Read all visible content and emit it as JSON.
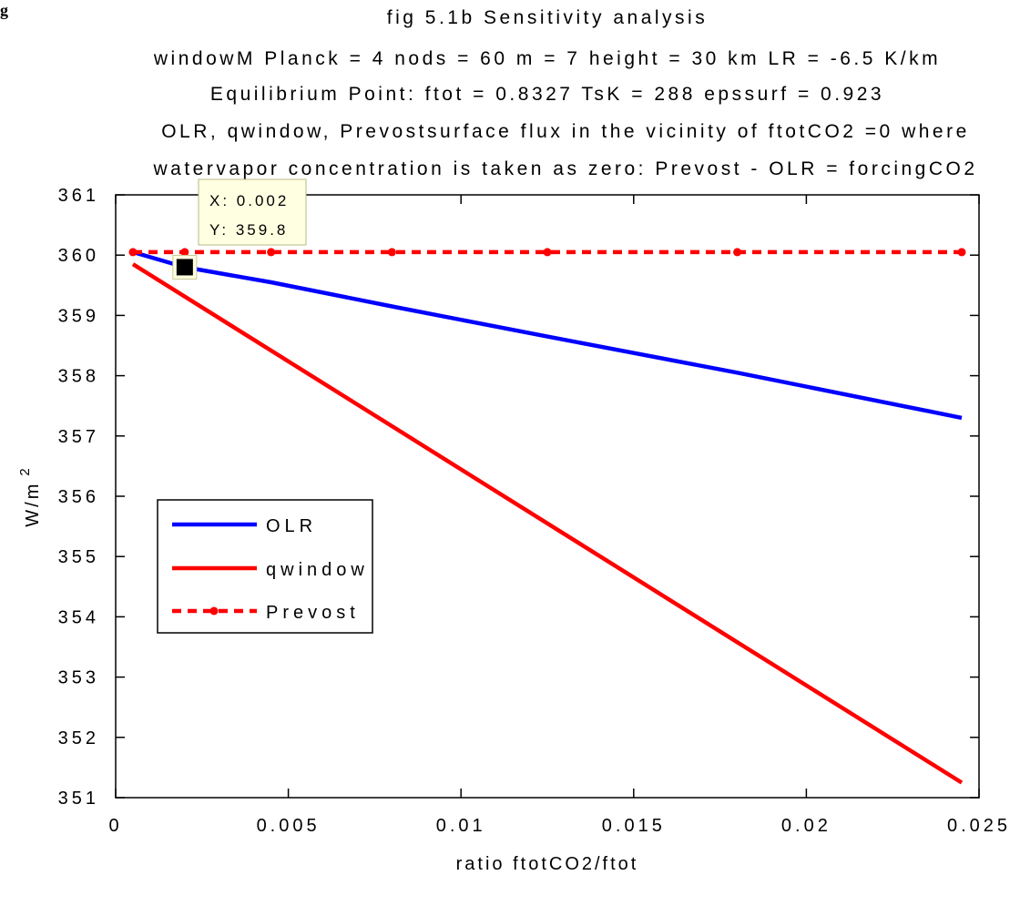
{
  "chart_data": {
    "type": "line",
    "corner_fragment": "g",
    "title_lines": [
      "fig 5.1b Sensitivity analysis",
      "windowM Planck = 4 nods = 60  m = 7  height = 30 km   LR = -6.5 K/km",
      "Equilibrium Point:   ftot = 0.8327 TsK = 288  epssurf = 0.923",
      "OLR, qwindow, Prevostsurface flux in the vicinity of ftotCO2 =0 where",
      "watervapor concentration is taken as zero: Prevost - OLR = forcingCO2"
    ],
    "xlabel": "ratio  ftotCO2/ftot",
    "ylabel": "W/m",
    "ylabel_superscript": "2",
    "xlim": [
      0,
      0.025
    ],
    "ylim": [
      351,
      361
    ],
    "x_ticks": [
      0,
      0.005,
      0.01,
      0.015,
      0.02,
      0.025
    ],
    "x_tick_labels": [
      "0",
      "0.005",
      "0.01",
      "0.015",
      "0.02",
      "0.025"
    ],
    "y_ticks": [
      351,
      352,
      353,
      354,
      355,
      356,
      357,
      358,
      359,
      360,
      361
    ],
    "y_tick_labels": [
      "351",
      "352",
      "353",
      "354",
      "355",
      "356",
      "357",
      "358",
      "359",
      "360",
      "361"
    ],
    "grid": false,
    "legend_position": "center-left",
    "series": [
      {
        "name": "OLR",
        "color": "#0000ff",
        "style": "solid",
        "markers": false,
        "x": [
          0.0005,
          0.002,
          0.0045,
          0.008,
          0.0125,
          0.018,
          0.0245
        ],
        "y": [
          360.05,
          359.8,
          359.55,
          359.15,
          358.65,
          358.05,
          357.3
        ]
      },
      {
        "name": "qwindow",
        "color": "#ff0000",
        "style": "solid",
        "markers": false,
        "x": [
          0.0005,
          0.0245
        ],
        "y": [
          359.85,
          351.25
        ]
      },
      {
        "name": "Prevost",
        "color": "#ff0000",
        "style": "dotted",
        "markers": true,
        "x": [
          0.0005,
          0.002,
          0.0045,
          0.008,
          0.0125,
          0.018,
          0.0245
        ],
        "y": [
          360.05,
          360.05,
          360.05,
          360.05,
          360.05,
          360.05,
          360.05
        ]
      }
    ],
    "datatip": {
      "x": 0.002,
      "y": 359.8,
      "x_text": "X: 0.002",
      "y_text": "Y: 359.8"
    }
  }
}
